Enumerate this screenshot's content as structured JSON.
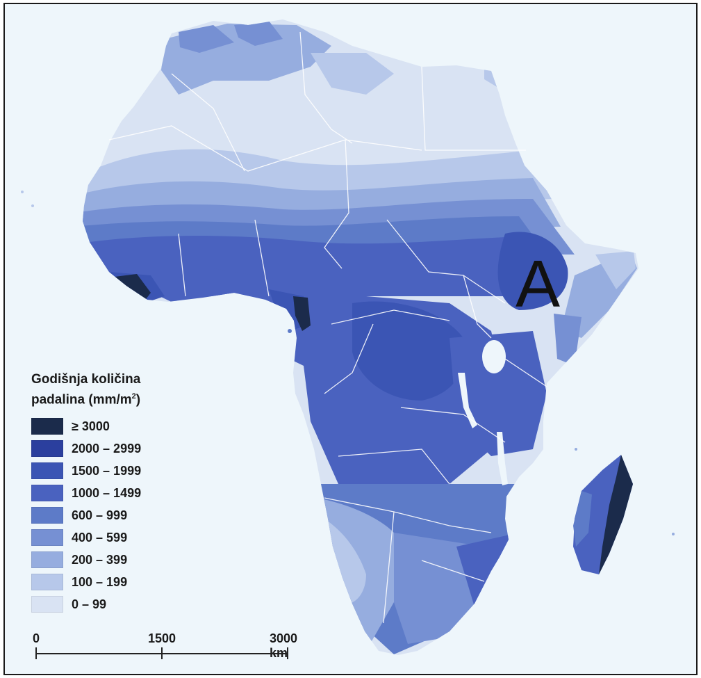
{
  "map": {
    "marker_label": "A",
    "legend_title_line1": "Godišnja količina",
    "legend_title_line2": "padalina (mm/m",
    "legend_title_sup": "2",
    "legend_title_close": ")",
    "legend": [
      {
        "label": "≥ 3000",
        "color": "#1b2b4b"
      },
      {
        "label": "2000 – 2999",
        "color": "#2b3f9e"
      },
      {
        "label": "1500 – 1999",
        "color": "#3b55b4"
      },
      {
        "label": "1000 – 1499",
        "color": "#4a62bf"
      },
      {
        "label": "600 – 999",
        "color": "#5d7bc8"
      },
      {
        "label": "400 – 599",
        "color": "#7690d3"
      },
      {
        "label": "200 – 399",
        "color": "#96addf"
      },
      {
        "label": "100 – 199",
        "color": "#b7c8ea"
      },
      {
        "label": "0 – 99",
        "color": "#d9e3f3"
      }
    ],
    "scale": {
      "labels": [
        "0",
        "1500",
        "3000 km"
      ]
    },
    "colors": {
      "sea": "#eef6fb",
      "borders": "#ffffff",
      "frame": "#1a1a1a"
    }
  }
}
